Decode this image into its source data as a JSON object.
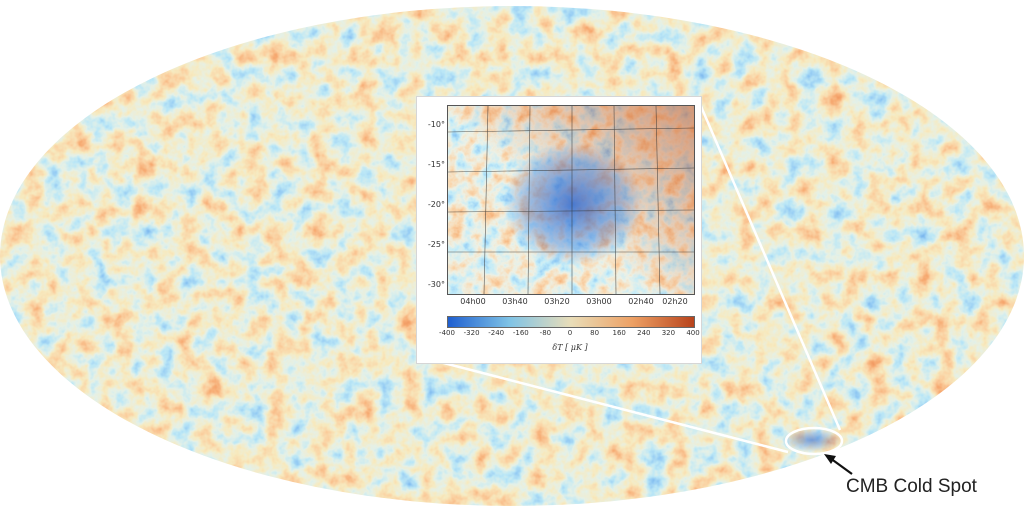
{
  "inset": {
    "y_ticks": [
      "-10°",
      "-15°",
      "-20°",
      "-25°",
      "-30°"
    ],
    "x_ticks": [
      "04h00",
      "03h40",
      "03h20",
      "03h00",
      "02h40",
      "02h20"
    ],
    "colorbar_ticks": [
      "-400",
      "-320",
      "-240",
      "-160",
      "-80",
      "0",
      "80",
      "160",
      "240",
      "320",
      "400"
    ],
    "colorbar_label": "δT [ μK ]"
  },
  "callout": {
    "label": "CMB Cold Spot"
  },
  "colors": {
    "cold": "#1f5fd0",
    "cool": "#7fc3e6",
    "neutral": "#e9ddb8",
    "warm": "#eda064",
    "hot": "#b8431c"
  }
}
